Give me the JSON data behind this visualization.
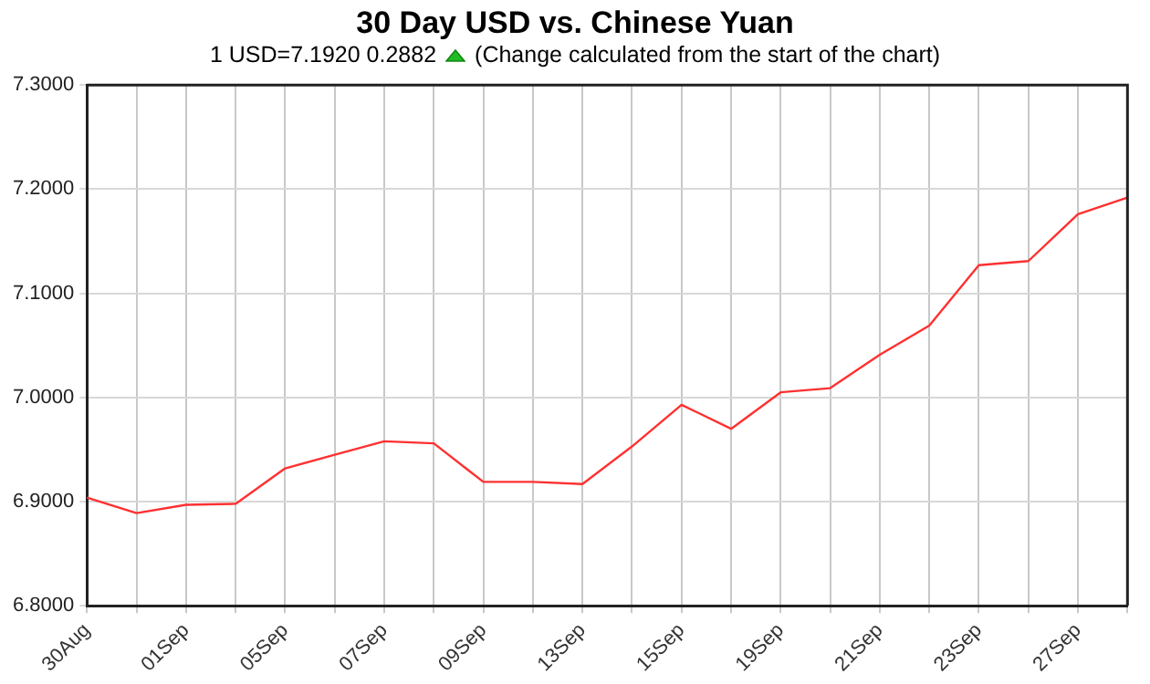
{
  "chart_data": {
    "type": "line",
    "title": "30 Day USD vs. Chinese Yuan",
    "subtitle": "1 USD=7.1920  0.2882",
    "annotations": [
      "(Change calculated from the start of the chart)"
    ],
    "categories": [
      "30Aug",
      null,
      "01Sep",
      null,
      "05Sep",
      null,
      "07Sep",
      null,
      "09Sep",
      null,
      "13Sep",
      null,
      "15Sep",
      null,
      "19Sep",
      null,
      "21Sep",
      null,
      "23Sep",
      null,
      "27Sep",
      null
    ],
    "series": [
      {
        "color": "#ff3030",
        "values": [
          6.904,
          6.889,
          6.897,
          6.898,
          6.932,
          6.945,
          6.958,
          6.956,
          6.919,
          6.919,
          6.917,
          6.953,
          6.993,
          6.97,
          7.005,
          7.009,
          7.041,
          7.069,
          7.127,
          7.131,
          7.176,
          7.192
        ]
      }
    ],
    "ylim": [
      6.8,
      7.3
    ],
    "yticks": [
      {
        "value": 6.8,
        "label": "6.8000"
      },
      {
        "value": 6.9,
        "label": "6.9000"
      },
      {
        "value": 7.0,
        "label": "7.0000"
      },
      {
        "value": 7.1,
        "label": "7.1000"
      },
      {
        "value": 7.2,
        "label": "7.2000"
      },
      {
        "value": 7.3,
        "label": "7.3000"
      }
    ],
    "grid": true,
    "legend": false,
    "marker": "none",
    "line_style": "solid"
  }
}
